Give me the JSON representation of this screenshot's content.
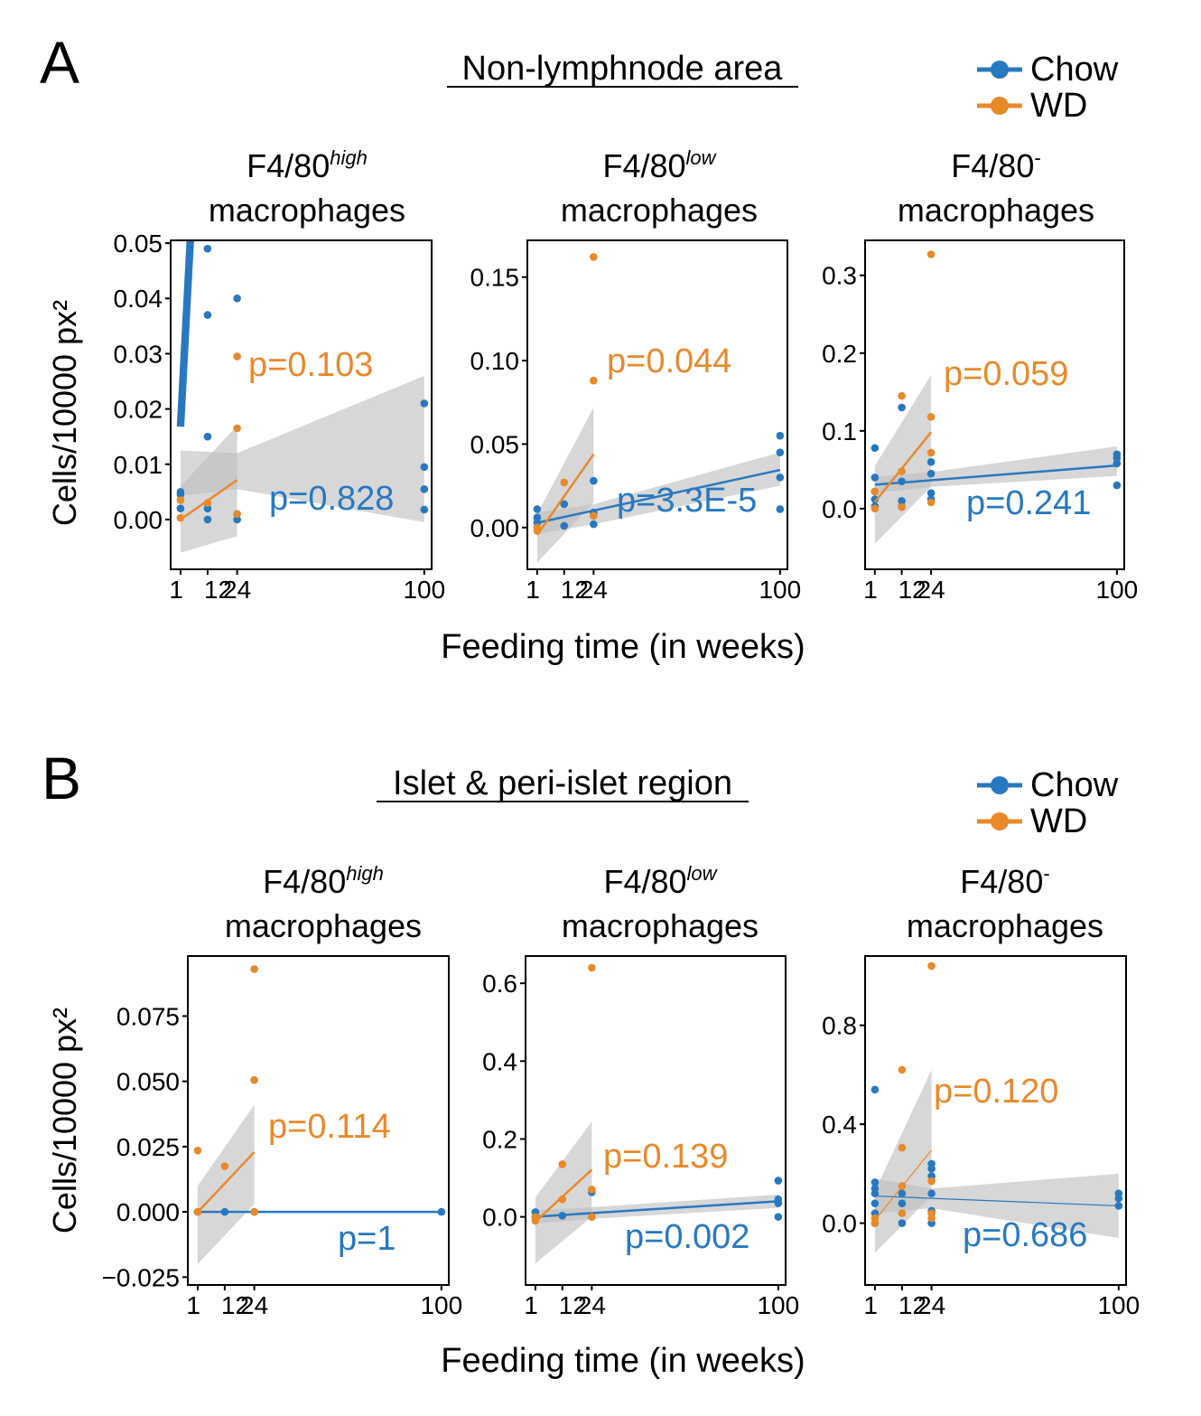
{
  "colors": {
    "chow": "#2878c0",
    "wd": "#e8892a",
    "band": "#bebebe",
    "text": "#000000"
  },
  "legend": {
    "chow": "Chow",
    "wd": "WD"
  },
  "x_axis_label": "Feeding time (in weeks)",
  "y_axis_label": "Cells/10000 px²",
  "panels": [
    {
      "letter": "A",
      "title": "Non-lymphnode area"
    },
    {
      "letter": "B",
      "title": "Islet & peri-islet region"
    }
  ],
  "chart_data": [
    {
      "type": "scatter",
      "panel": "A",
      "title_main": "F4/80",
      "title_sup": "high",
      "title_line2": "macrophages",
      "xlabel": "Feeding time (in weeks)",
      "ylabel": "Cells/10000 px²",
      "xticks": [
        1,
        12,
        24,
        100
      ],
      "xlim": [
        -3,
        103
      ],
      "yticks": [
        0.0,
        0.01,
        0.02,
        0.03,
        0.04,
        0.05
      ],
      "ytick_labels": [
        "0.00",
        "0.01",
        "0.02",
        "0.03",
        "0.04",
        "0.05"
      ],
      "ylim": [
        -0.009,
        0.0505
      ],
      "series": [
        {
          "name": "Chow",
          "points": [
            [
              1,
              0.005
            ],
            [
              1,
              0.002
            ],
            [
              1,
              0.0045
            ],
            [
              12,
              0.049
            ],
            [
              12,
              0.037
            ],
            [
              12,
              0.015
            ],
            [
              12,
              0.0
            ],
            [
              12,
              0.002
            ],
            [
              24,
              0.04
            ],
            [
              24,
              0.001
            ],
            [
              24,
              0.0
            ],
            [
              100,
              0.021
            ],
            [
              100,
              0.0095
            ],
            [
              100,
              0.0055
            ],
            [
              100,
              0.0018
            ]
          ],
          "fit": [
            8.3,
            0.0083,
            0.0085
          ],
          "band": [
            [
              1,
              0.0043,
              0.0125
            ],
            [
              24,
              0.0055,
              0.012
            ],
            [
              100,
              -0.0005,
              0.026
            ]
          ],
          "pvalue": "p=0.828"
        },
        {
          "name": "WD",
          "points": [
            [
              1,
              0.0035
            ],
            [
              1,
              0.0003
            ],
            [
              12,
              0.003
            ],
            [
              24,
              0.0165
            ],
            [
              24,
              0.0295
            ],
            [
              24,
              0.001
            ]
          ],
          "fit": [
            2.5,
            -0.0003,
            0.00031
          ],
          "band": [
            [
              1,
              -0.006,
              0.006
            ],
            [
              24,
              -0.003,
              0.017
            ]
          ],
          "pvalue": "p=0.103"
        }
      ]
    },
    {
      "type": "scatter",
      "panel": "A",
      "title_main": "F4/80",
      "title_sup": "low",
      "title_line2": "macrophages",
      "xlabel": "Feeding time (in weeks)",
      "ylabel": "Cells/10000 px²",
      "xticks": [
        1,
        12,
        24,
        100
      ],
      "xlim": [
        -3,
        103
      ],
      "yticks": [
        0.0,
        0.05,
        0.1,
        0.15
      ],
      "ytick_labels": [
        "0.00",
        "0.05",
        "0.10",
        "0.15"
      ],
      "ylim": [
        -0.025,
        0.172
      ],
      "series": [
        {
          "name": "Chow",
          "points": [
            [
              1,
              0.011
            ],
            [
              1,
              0.006
            ],
            [
              1,
              0.003
            ],
            [
              12,
              0.014
            ],
            [
              12,
              0.001
            ],
            [
              24,
              0.028
            ],
            [
              24,
              0.009
            ],
            [
              24,
              0.002
            ],
            [
              100,
              0.055
            ],
            [
              100,
              0.045
            ],
            [
              100,
              0.03
            ],
            [
              100,
              0.011
            ]
          ],
          "fit": [
            2.5,
            0.0025,
            0.00032
          ],
          "band": [
            [
              1,
              -0.004,
              0.009
            ],
            [
              24,
              0.002,
              0.014
            ],
            [
              100,
              0.025,
              0.045
            ]
          ],
          "pvalue": "p=3.3E-5"
        },
        {
          "name": "WD",
          "points": [
            [
              1,
              0.0
            ],
            [
              1,
              -0.002
            ],
            [
              12,
              0.027
            ],
            [
              24,
              0.162
            ],
            [
              24,
              0.088
            ],
            [
              24,
              0.007
            ]
          ],
          "fit": [
            2.5,
            -0.0065,
            0.0021
          ],
          "band": [
            [
              1,
              -0.021,
              0.008
            ],
            [
              24,
              0.015,
              0.072
            ]
          ],
          "pvalue": "p=0.044"
        }
      ]
    },
    {
      "type": "scatter",
      "panel": "A",
      "title_main": "F4/80",
      "title_sup": "-",
      "title_line2": "macrophages",
      "xlabel": "Feeding time (in weeks)",
      "ylabel": "Cells/10000 px²",
      "xticks": [
        1,
        12,
        24,
        100
      ],
      "xlim": [
        -3,
        103
      ],
      "yticks": [
        0.0,
        0.1,
        0.2,
        0.3
      ],
      "ytick_labels": [
        "0.0",
        "0.1",
        "0.2",
        "0.3"
      ],
      "ylim": [
        -0.078,
        0.345
      ],
      "series": [
        {
          "name": "Chow",
          "points": [
            [
              1,
              0.078
            ],
            [
              1,
              0.04
            ],
            [
              1,
              0.022
            ],
            [
              1,
              0.012
            ],
            [
              1,
              0.003
            ],
            [
              12,
              0.13
            ],
            [
              12,
              0.035
            ],
            [
              12,
              0.01
            ],
            [
              12,
              0.003
            ],
            [
              24,
              0.06
            ],
            [
              24,
              0.045
            ],
            [
              24,
              0.02
            ],
            [
              24,
              0.012
            ],
            [
              100,
              0.07
            ],
            [
              100,
              0.065
            ],
            [
              100,
              0.058
            ],
            [
              100,
              0.03
            ]
          ],
          "fit": [
            2.5,
            0.0305,
            0.00025
          ],
          "band": [
            [
              1,
              0.02,
              0.041
            ],
            [
              24,
              0.028,
              0.047
            ],
            [
              100,
              0.042,
              0.08
            ]
          ],
          "pvalue": "p=0.241"
        },
        {
          "name": "WD",
          "points": [
            [
              1,
              0.022
            ],
            [
              1,
              0.0
            ],
            [
              12,
              0.145
            ],
            [
              12,
              0.048
            ],
            [
              12,
              0.002
            ],
            [
              24,
              0.327
            ],
            [
              24,
              0.118
            ],
            [
              24,
              0.072
            ],
            [
              24,
              0.008
            ]
          ],
          "fit": [
            2.5,
            0.0047,
            0.0039
          ],
          "band": [
            [
              1,
              -0.045,
              0.055
            ],
            [
              24,
              0.028,
              0.172
            ]
          ],
          "pvalue": "p=0.059"
        }
      ]
    },
    {
      "type": "scatter",
      "panel": "B",
      "title_main": "F4/80",
      "title_sup": "high",
      "title_line2": "macrophages",
      "xlabel": "Feeding time (in weeks)",
      "ylabel": "Cells/10000 px²",
      "xticks": [
        1,
        12,
        24,
        100
      ],
      "xlim": [
        -3,
        103
      ],
      "yticks": [
        -0.025,
        0.0,
        0.025,
        0.05,
        0.075
      ],
      "ytick_labels": [
        "−0.025",
        "0.000",
        "0.025",
        "0.050",
        "0.075"
      ],
      "ylim": [
        -0.028,
        0.098
      ],
      "series": [
        {
          "name": "Chow",
          "points": [
            [
              1,
              0.0
            ],
            [
              12,
              0.0
            ],
            [
              24,
              0.0
            ],
            [
              100,
              0.0
            ]
          ],
          "fit": [
            2.5,
            0.0,
            0.0
          ],
          "band": [
            [
              1,
              0.0,
              0.0
            ],
            [
              100,
              0.0,
              0.0
            ]
          ],
          "pvalue": "p=1"
        },
        {
          "name": "WD",
          "points": [
            [
              1,
              0.0235
            ],
            [
              1,
              0.0
            ],
            [
              12,
              0.0175
            ],
            [
              24,
              0.093
            ],
            [
              24,
              0.0505
            ],
            [
              24,
              0.0
            ]
          ],
          "fit": [
            2.5,
            -0.0011,
            0.001
          ],
          "band": [
            [
              1,
              -0.02,
              0.01
            ],
            [
              24,
              0.003,
              0.041
            ]
          ],
          "pvalue": "p=0.114"
        }
      ]
    },
    {
      "type": "scatter",
      "panel": "B",
      "title_main": "F4/80",
      "title_sup": "low",
      "title_line2": "macrophages",
      "xlabel": "Feeding time (in weeks)",
      "ylabel": "Cells/10000 px²",
      "xticks": [
        1,
        12,
        24,
        100
      ],
      "xlim": [
        -3,
        103
      ],
      "yticks": [
        0.0,
        0.2,
        0.4,
        0.6
      ],
      "ytick_labels": [
        "0.0",
        "0.2",
        "0.4",
        "0.6"
      ],
      "ylim": [
        -0.175,
        0.67
      ],
      "series": [
        {
          "name": "Chow",
          "points": [
            [
              1,
              0.012
            ],
            [
              1,
              0.0
            ],
            [
              12,
              0.003
            ],
            [
              24,
              0.063
            ],
            [
              24,
              0.0
            ],
            [
              100,
              0.093
            ],
            [
              100,
              0.045
            ],
            [
              100,
              0.035
            ],
            [
              100,
              0.0
            ]
          ],
          "fit": [
            2.5,
            0.0,
            0.0004
          ],
          "band": [
            [
              1,
              -0.017,
              0.017
            ],
            [
              24,
              -0.005,
              0.025
            ],
            [
              100,
              0.023,
              0.057
            ]
          ],
          "pvalue": "p=0.002"
        },
        {
          "name": "WD",
          "points": [
            [
              1,
              0.0
            ],
            [
              1,
              -0.01
            ],
            [
              12,
              0.135
            ],
            [
              12,
              0.045
            ],
            [
              24,
              0.64
            ],
            [
              24,
              0.07
            ],
            [
              24,
              0.0
            ]
          ],
          "fit": [
            2.5,
            -0.018,
            0.0058
          ],
          "band": [
            [
              1,
              -0.12,
              0.05
            ],
            [
              24,
              0.0,
              0.245
            ]
          ],
          "pvalue": "p=0.139"
        }
      ]
    },
    {
      "type": "scatter",
      "panel": "B",
      "title_main": "F4/80",
      "title_sup": "-",
      "title_line2": "macrophages",
      "xlabel": "Feeding time (in weeks)",
      "ylabel": "Cells/10000 px²",
      "xticks": [
        1,
        12,
        24,
        100
      ],
      "xlim": [
        -3,
        103
      ],
      "yticks": [
        0.0,
        0.4,
        0.8
      ],
      "ytick_labels": [
        "0.0",
        "0.4",
        "0.8"
      ],
      "ylim": [
        -0.25,
        1.08
      ],
      "series": [
        {
          "name": "Chow",
          "points": [
            [
              1,
              0.54
            ],
            [
              1,
              0.165
            ],
            [
              1,
              0.14
            ],
            [
              1,
              0.12
            ],
            [
              1,
              0.08
            ],
            [
              1,
              0.04
            ],
            [
              1,
              0.0
            ],
            [
              12,
              0.12
            ],
            [
              12,
              0.08
            ],
            [
              12,
              0.0
            ],
            [
              24,
              0.24
            ],
            [
              24,
              0.22
            ],
            [
              24,
              0.19
            ],
            [
              24,
              0.12
            ],
            [
              24,
              0.05
            ],
            [
              24,
              0.0
            ],
            [
              100,
              0.12
            ],
            [
              100,
              0.1
            ],
            [
              100,
              0.07
            ]
          ],
          "fit": [
            1.2,
            0.11,
            -0.0004
          ],
          "band": [
            [
              1,
              0.04,
              0.18
            ],
            [
              24,
              0.06,
              0.14
            ],
            [
              100,
              -0.06,
              0.2
            ]
          ],
          "pvalue": "p=0.686"
        },
        {
          "name": "WD",
          "points": [
            [
              1,
              0.02
            ],
            [
              1,
              0.0
            ],
            [
              12,
              0.62
            ],
            [
              12,
              0.305
            ],
            [
              12,
              0.15
            ],
            [
              12,
              0.04
            ],
            [
              24,
              1.04
            ],
            [
              24,
              0.17
            ],
            [
              24,
              0.04
            ],
            [
              24,
              0.02
            ]
          ],
          "fit": [
            1.2,
            0.0,
            0.0123
          ],
          "band": [
            [
              1,
              -0.12,
              0.13
            ],
            [
              24,
              0.11,
              0.62
            ]
          ],
          "pvalue": "p=0.120"
        }
      ]
    }
  ]
}
